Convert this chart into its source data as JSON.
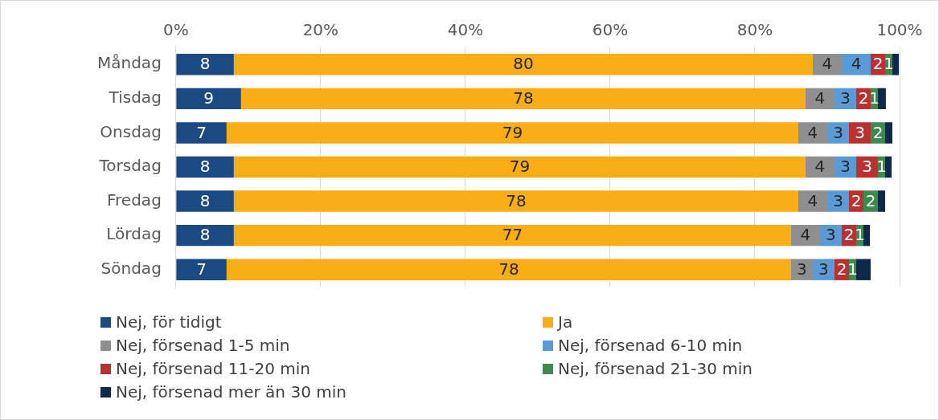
{
  "chart_data": {
    "type": "bar",
    "orientation": "horizontal",
    "stacked": true,
    "categories": [
      "Måndag",
      "Tisdag",
      "Onsdag",
      "Torsdag",
      "Fredag",
      "Lördag",
      "Söndag"
    ],
    "series": [
      {
        "name": "Nej, för tidigt",
        "color": "#1b4a82",
        "values": [
          8,
          9,
          7,
          8,
          8,
          8,
          7
        ],
        "value_labels": [
          "8",
          "9",
          "7",
          "8",
          "8",
          "8",
          "7"
        ]
      },
      {
        "name": "Ja",
        "color": "#fbad18",
        "values": [
          80,
          78,
          79,
          79,
          78,
          77,
          78
        ],
        "value_labels": [
          "80",
          "78",
          "79",
          "79",
          "78",
          "77",
          "78"
        ]
      },
      {
        "name": "Nej, försenad 1-5 min",
        "color": "#8f8f8f",
        "values": [
          4,
          4,
          4,
          4,
          4,
          4,
          3
        ],
        "value_labels": [
          "4",
          "4",
          "4",
          "4",
          "4",
          "4",
          "3"
        ]
      },
      {
        "name": "Nej, försenad 6-10 min",
        "color": "#5b9bd5",
        "values": [
          4,
          3,
          3,
          3,
          3,
          3,
          3
        ],
        "value_labels": [
          "4",
          "3",
          "3",
          "3",
          "3",
          "3",
          "3"
        ]
      },
      {
        "name": "Nej, försenad 11-20 min",
        "color": "#b83232",
        "values": [
          2,
          2,
          3,
          3,
          2,
          2,
          2
        ],
        "value_labels": [
          "2",
          "2",
          "3",
          "3",
          "2",
          "2",
          "2"
        ]
      },
      {
        "name": "Nej, försenad 21-30 min",
        "color": "#3e8a4e",
        "values": [
          1,
          1,
          2,
          1,
          2,
          1,
          1
        ],
        "value_labels": [
          "1",
          "1",
          "2",
          "1",
          "2",
          "1",
          "1"
        ]
      },
      {
        "name": "Nej, försenad mer än 30 min",
        "color": "#10294a",
        "values": [
          0.9,
          1.1,
          1.0,
          0.9,
          1.0,
          0.9,
          2.0
        ],
        "value_labels": [
          null,
          null,
          null,
          null,
          null,
          null,
          null
        ]
      }
    ],
    "xlim": [
      0,
      100
    ],
    "xticks": [
      {
        "value": 0,
        "label": "0%"
      },
      {
        "value": 20,
        "label": "20%"
      },
      {
        "value": 40,
        "label": "40%"
      },
      {
        "value": 60,
        "label": "60%"
      },
      {
        "value": 80,
        "label": "80%"
      },
      {
        "value": 100,
        "label": "100%"
      }
    ],
    "grid": "x",
    "legend": "bottom"
  }
}
